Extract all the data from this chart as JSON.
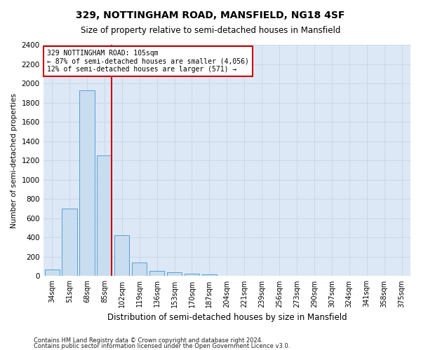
{
  "title": "329, NOTTINGHAM ROAD, MANSFIELD, NG18 4SF",
  "subtitle": "Size of property relative to semi-detached houses in Mansfield",
  "xlabel": "Distribution of semi-detached houses by size in Mansfield",
  "ylabel": "Number of semi-detached properties",
  "footnote1": "Contains HM Land Registry data © Crown copyright and database right 2024.",
  "footnote2": "Contains public sector information licensed under the Open Government Licence v3.0.",
  "categories": [
    "34sqm",
    "51sqm",
    "68sqm",
    "85sqm",
    "102sqm",
    "119sqm",
    "136sqm",
    "153sqm",
    "170sqm",
    "187sqm",
    "204sqm",
    "221sqm",
    "239sqm",
    "256sqm",
    "273sqm",
    "290sqm",
    "307sqm",
    "324sqm",
    "341sqm",
    "358sqm",
    "375sqm"
  ],
  "values": [
    65,
    700,
    1930,
    1250,
    425,
    140,
    55,
    40,
    25,
    15,
    5,
    0,
    0,
    0,
    0,
    0,
    0,
    0,
    0,
    0,
    0
  ],
  "bar_color": "#c8ddef",
  "bar_edge_color": "#5a9fd4",
  "annotation_text_line1": "329 NOTTINGHAM ROAD: 105sqm",
  "annotation_text_line2": "← 87% of semi-detached houses are smaller (4,056)",
  "annotation_text_line3": "12% of semi-detached houses are larger (571) →",
  "annotation_box_color": "#ffffff",
  "annotation_box_edge_color": "#cc0000",
  "vline_color": "#cc0000",
  "ylim": [
    0,
    2400
  ],
  "yticks": [
    0,
    200,
    400,
    600,
    800,
    1000,
    1200,
    1400,
    1600,
    1800,
    2000,
    2200,
    2400
  ],
  "grid_color": "#c8d8e8",
  "bg_color": "#dce8f5",
  "prop_bar_index": 3
}
